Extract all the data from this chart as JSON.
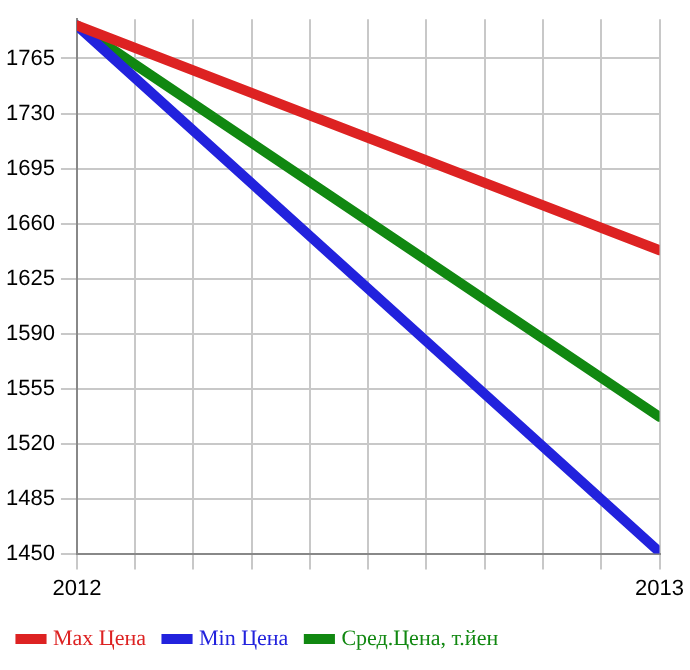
{
  "chart_data": {
    "type": "line",
    "x": [
      2012,
      2013
    ],
    "series": [
      {
        "name": "Max Цена",
        "color": "#dd2222",
        "values": [
          1786,
          1643
        ]
      },
      {
        "name": "Min Цена",
        "color": "#2222dd",
        "values": [
          1786,
          1451
        ]
      },
      {
        "name": "Сред.Цена, т.йен",
        "color": "#118811",
        "values": [
          1786,
          1537
        ]
      }
    ],
    "xlim": [
      2012,
      2013
    ],
    "xticks": [
      2012,
      {
        "value": 2012.1,
        "label": null
      },
      {
        "value": 2012.2,
        "label": null
      },
      {
        "value": 2012.3,
        "label": null
      },
      {
        "value": 2012.4,
        "label": null
      },
      {
        "value": 2012.5,
        "label": null
      },
      {
        "value": 2012.6,
        "label": null
      },
      {
        "value": 2012.7,
        "label": null
      },
      {
        "value": 2012.8,
        "label": null
      },
      {
        "value": 2012.9,
        "label": null
      },
      2013
    ],
    "ylim": [
      1450,
      1790
    ],
    "yticks": [
      1450,
      1485,
      1520,
      1555,
      1590,
      1625,
      1660,
      1695,
      1730,
      1765
    ],
    "grid": true,
    "legend": "bottom",
    "marker": "none",
    "line_style": "solid"
  }
}
